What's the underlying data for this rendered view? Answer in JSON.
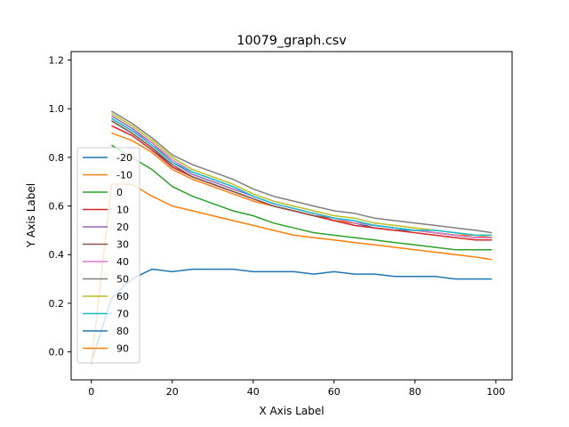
{
  "chart_data": {
    "type": "line",
    "title": "10079_graph.csv",
    "xlabel": "X Axis Label",
    "ylabel": "Y Axis Label",
    "xlim": [
      -5,
      104
    ],
    "ylim": [
      -0.115,
      1.235
    ],
    "xticks": [
      0,
      20,
      40,
      60,
      80,
      100
    ],
    "xtick_labels": [
      "0",
      "20",
      "40",
      "60",
      "80",
      "100"
    ],
    "yticks": [
      0.0,
      0.2,
      0.4,
      0.6,
      0.8,
      1.0,
      1.2
    ],
    "ytick_labels": [
      "0.0",
      "0.2",
      "0.4",
      "0.6",
      "0.8",
      "1.0",
      "1.2"
    ],
    "grid": false,
    "legend_position": "center-left",
    "x": [
      0,
      5,
      10,
      15,
      20,
      25,
      30,
      35,
      40,
      45,
      50,
      55,
      60,
      65,
      70,
      75,
      80,
      85,
      90,
      95,
      99
    ],
    "series": [
      {
        "name": "-20",
        "color": "#1f77b4",
        "values": [
          null,
          0.95,
          0.9,
          0.84,
          0.76,
          0.72,
          0.69,
          0.66,
          0.63,
          0.6,
          0.58,
          0.56,
          0.54,
          0.53,
          0.51,
          0.5,
          0.5,
          0.49,
          0.48,
          0.47,
          0.47
        ]
      },
      {
        "name": "-10",
        "color": "#ff7f0e",
        "values": [
          null,
          0.9,
          0.87,
          0.82,
          0.75,
          0.71,
          0.68,
          0.65,
          0.62,
          0.6,
          0.58,
          0.56,
          0.54,
          0.53,
          0.52,
          0.51,
          0.5,
          0.49,
          0.48,
          0.48,
          0.47
        ]
      },
      {
        "name": "0",
        "color": "#2ca02c",
        "values": [
          null,
          0.85,
          0.8,
          0.75,
          0.68,
          0.64,
          0.61,
          0.58,
          0.56,
          0.53,
          0.51,
          0.49,
          0.48,
          0.47,
          0.46,
          0.45,
          0.44,
          0.43,
          0.42,
          0.42,
          0.42
        ]
      },
      {
        "name": "10",
        "color": "#d62728",
        "values": [
          null,
          0.93,
          0.89,
          0.83,
          0.76,
          0.72,
          0.69,
          0.66,
          0.63,
          0.6,
          0.58,
          0.56,
          0.54,
          0.52,
          0.51,
          0.5,
          0.49,
          0.48,
          0.47,
          0.46,
          0.46
        ]
      },
      {
        "name": "20",
        "color": "#9467bd",
        "values": [
          null,
          0.97,
          0.92,
          0.86,
          0.78,
          0.73,
          0.7,
          0.67,
          0.64,
          0.61,
          0.59,
          0.57,
          0.55,
          0.53,
          0.52,
          0.51,
          0.5,
          0.49,
          0.48,
          0.47,
          0.47
        ]
      },
      {
        "name": "30",
        "color": "#8c564b",
        "values": [
          null,
          0.95,
          0.9,
          0.84,
          0.77,
          0.72,
          0.69,
          0.66,
          0.63,
          0.6,
          0.58,
          0.56,
          0.55,
          0.53,
          0.52,
          0.51,
          0.5,
          0.49,
          0.48,
          0.47,
          0.47
        ]
      },
      {
        "name": "40",
        "color": "#e377c2",
        "values": [
          null,
          0.96,
          0.91,
          0.86,
          0.79,
          0.74,
          0.71,
          0.68,
          0.64,
          0.61,
          0.59,
          0.57,
          0.55,
          0.53,
          0.52,
          0.51,
          0.5,
          0.49,
          0.48,
          0.47,
          0.47
        ]
      },
      {
        "name": "50",
        "color": "#7f7f7f",
        "values": [
          null,
          0.99,
          0.94,
          0.88,
          0.81,
          0.77,
          0.74,
          0.71,
          0.67,
          0.64,
          0.62,
          0.6,
          0.58,
          0.57,
          0.55,
          0.54,
          0.53,
          0.52,
          0.51,
          0.5,
          0.49
        ]
      },
      {
        "name": "60",
        "color": "#bcbd22",
        "values": [
          null,
          0.98,
          0.93,
          0.87,
          0.8,
          0.75,
          0.72,
          0.69,
          0.65,
          0.62,
          0.6,
          0.58,
          0.56,
          0.55,
          0.53,
          0.52,
          0.51,
          0.5,
          0.49,
          0.48,
          0.48
        ]
      },
      {
        "name": "70",
        "color": "#17becf",
        "values": [
          null,
          0.96,
          0.91,
          0.85,
          0.78,
          0.74,
          0.71,
          0.68,
          0.64,
          0.61,
          0.59,
          0.57,
          0.55,
          0.54,
          0.52,
          0.51,
          0.5,
          0.5,
          0.49,
          0.48,
          0.48
        ]
      },
      {
        "name": "80",
        "color": "#1f77b4",
        "values": [
          -0.04,
          0.22,
          0.3,
          0.34,
          0.33,
          0.34,
          0.34,
          0.34,
          0.33,
          0.33,
          0.33,
          0.32,
          0.33,
          0.32,
          0.32,
          0.31,
          0.31,
          0.31,
          0.3,
          0.3,
          0.3
        ]
      },
      {
        "name": "90",
        "color": "#ff7f0e",
        "values": [
          -0.05,
          0.69,
          0.69,
          0.64,
          0.6,
          0.58,
          0.56,
          0.54,
          0.52,
          0.5,
          0.48,
          0.47,
          0.46,
          0.45,
          0.44,
          0.43,
          0.42,
          0.41,
          0.4,
          0.39,
          0.38
        ]
      }
    ]
  }
}
